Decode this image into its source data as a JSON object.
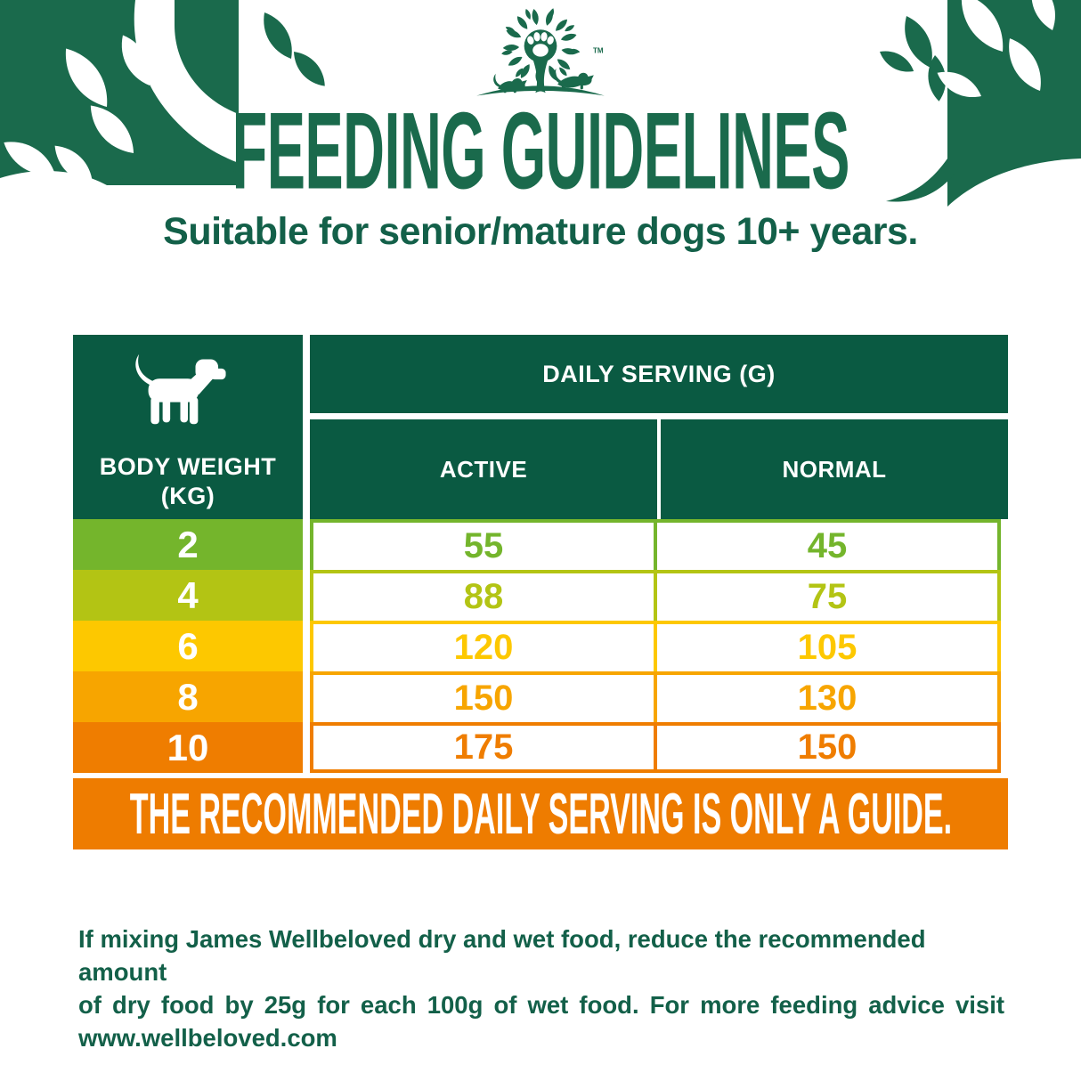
{
  "colors": {
    "brand_green": "#1a6a4c",
    "dark_green": "#0a5a42",
    "text_green": "#136049",
    "banner_orange": "#ee7c00",
    "row_colors": [
      "#74b52c",
      "#b3c414",
      "#fdc800",
      "#f7a500",
      "#ef7d00"
    ]
  },
  "icons": {
    "logo": "tree-paw-cat-dog-logo",
    "logo_tm": "TM",
    "table_header": "dog-silhouette-icon",
    "corners": "leaf-branch-decoration"
  },
  "header": {
    "title": "FEEDING GUIDELINES",
    "subtitle": "Suitable for senior/mature dogs 10+ years."
  },
  "table": {
    "body_weight_label": "BODY WEIGHT",
    "body_weight_unit": "(KG)",
    "daily_serving_label": "DAILY SERVING (G)",
    "col_active": "ACTIVE",
    "col_normal": "NORMAL",
    "rows": [
      {
        "weight": "2",
        "active": "55",
        "normal": "45",
        "color": "#74b52c"
      },
      {
        "weight": "4",
        "active": "88",
        "normal": "75",
        "color": "#b3c414"
      },
      {
        "weight": "6",
        "active": "120",
        "normal": "105",
        "color": "#fdc800"
      },
      {
        "weight": "8",
        "active": "150",
        "normal": "130",
        "color": "#f7a500"
      },
      {
        "weight": "10",
        "active": "175",
        "normal": "150",
        "color": "#ef7d00"
      }
    ],
    "banner": "THE RECOMMENDED DAILY SERVING IS ONLY A GUIDE."
  },
  "footer": {
    "lines": [
      "If mixing James Wellbeloved dry and wet food, reduce the recommended amount",
      "of dry food by 25g for each 100g of wet food. For more feeding advice visit",
      "www.wellbeloved.com"
    ]
  }
}
